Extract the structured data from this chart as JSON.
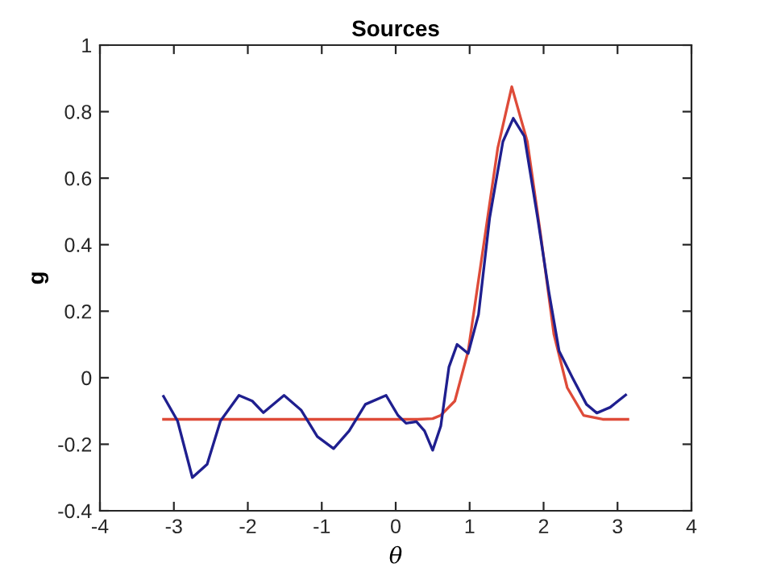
{
  "chart_data": {
    "type": "line",
    "title": "Sources",
    "xlabel": "θ",
    "ylabel": "g",
    "xlim": [
      -4,
      4
    ],
    "xticks": [
      -4,
      -3,
      -2,
      -1,
      0,
      1,
      2,
      3,
      4
    ],
    "ylim": [
      -0.4,
      1
    ],
    "yticks": [
      -0.4,
      -0.2,
      0,
      0.2,
      0.4,
      0.6,
      0.8,
      1
    ],
    "grid": false,
    "legend": false,
    "marker": "none",
    "line_style": "solid",
    "series": [
      {
        "color": "#de4b39",
        "x": [
          -3.14,
          -2.5,
          -1.5,
          -0.5,
          0.3,
          0.5,
          0.61,
          0.8,
          0.98,
          1.19,
          1.38,
          1.57,
          1.78,
          1.96,
          2.14,
          2.32,
          2.54,
          2.8,
          3.14
        ],
        "values": [
          -0.125,
          -0.125,
          -0.125,
          -0.125,
          -0.125,
          -0.123,
          -0.113,
          -0.07,
          0.08,
          0.4,
          0.69,
          0.875,
          0.71,
          0.43,
          0.13,
          -0.03,
          -0.113,
          -0.125,
          -0.125
        ]
      },
      {
        "color": "#1f1f8f",
        "x": [
          -3.14,
          -2.95,
          -2.75,
          -2.55,
          -2.37,
          -2.12,
          -1.94,
          -1.79,
          -1.51,
          -1.28,
          -1.06,
          -0.84,
          -0.63,
          -0.41,
          -0.13,
          0.03,
          0.14,
          0.28,
          0.39,
          0.5,
          0.61,
          0.72,
          0.83,
          0.98,
          1.12,
          1.27,
          1.45,
          1.59,
          1.74,
          1.92,
          2.07,
          2.21,
          2.39,
          2.58,
          2.72,
          2.9,
          3.11
        ],
        "values": [
          -0.056,
          -0.13,
          -0.3,
          -0.26,
          -0.13,
          -0.053,
          -0.07,
          -0.105,
          -0.053,
          -0.097,
          -0.177,
          -0.213,
          -0.16,
          -0.08,
          -0.053,
          -0.113,
          -0.137,
          -0.132,
          -0.16,
          -0.218,
          -0.145,
          0.032,
          0.1,
          0.073,
          0.19,
          0.48,
          0.71,
          0.78,
          0.726,
          0.48,
          0.26,
          0.08,
          0.0,
          -0.08,
          -0.106,
          -0.089,
          -0.052
        ]
      }
    ]
  }
}
